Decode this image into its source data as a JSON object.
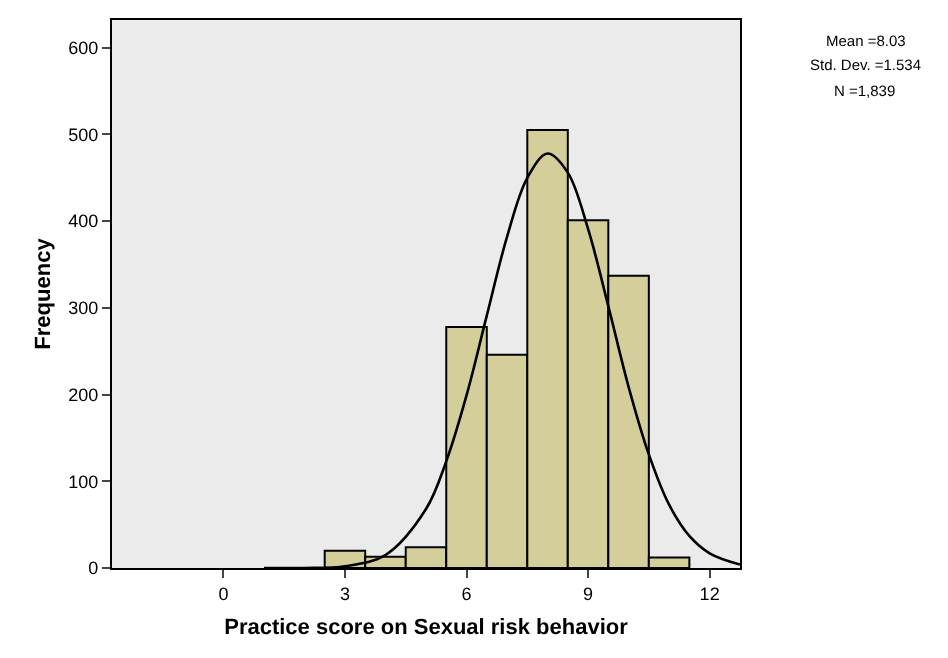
{
  "chart_data": {
    "type": "histogram",
    "xlabel": "Practice score on Sexual risk behavior",
    "ylabel": "Frequency",
    "annotations": [
      "Mean =8.03",
      "Std. Dev. =1.534",
      "N =1,839"
    ],
    "bins": [
      -0.5,
      0.5,
      1.5,
      2.5,
      3.5,
      4.5,
      5.5,
      6.5,
      7.5,
      8.5,
      9.5,
      10.5,
      11.5
    ],
    "series": [
      {
        "type": "histogram",
        "color": "#d4cf9a",
        "values": [
          null,
          null,
          null,
          20,
          13,
          24,
          278,
          246,
          505,
          401,
          337,
          12
        ]
      },
      {
        "type": "line",
        "color": "#000000",
        "x": [
          1,
          2,
          3,
          4,
          5,
          5.5,
          6,
          6.5,
          7,
          7.5,
          8,
          8.5,
          9,
          9.5,
          10,
          10.5,
          11,
          11.5,
          12,
          12.75
        ],
        "values": [
          0,
          0,
          2,
          15,
          68,
          123,
          199,
          291,
          382,
          450,
          478,
          456,
          391,
          302,
          209,
          131,
          73,
          37,
          17,
          4
        ]
      }
    ],
    "xlim": [
      -2.75,
      12.75
    ],
    "xticks": [
      0,
      3,
      6,
      9,
      12
    ],
    "ylim": [
      0,
      632
    ],
    "yticks": [
      0,
      100,
      200,
      300,
      400,
      500,
      600
    ],
    "grid": false,
    "legend": false
  }
}
